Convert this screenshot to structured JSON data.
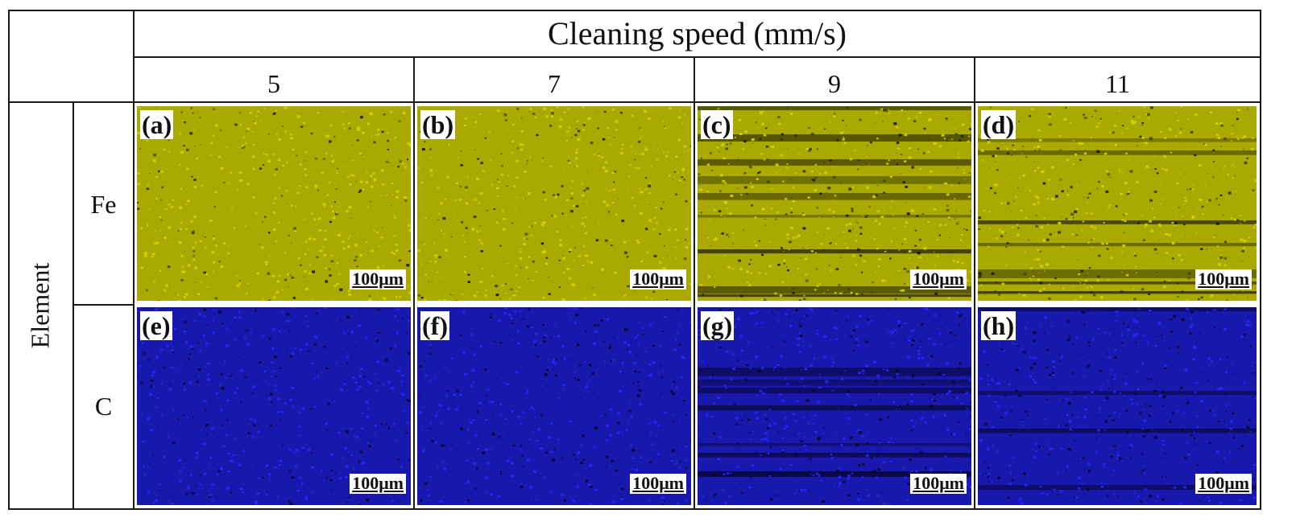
{
  "figure": {
    "header": "Cleaning speed (mm/s)",
    "row_group_label": "Element",
    "speeds": [
      "5",
      "7",
      "9",
      "11"
    ],
    "rows": [
      {
        "element": "Fe",
        "color": "#d6d400",
        "labels": [
          "(a)",
          "(b)",
          "(c)",
          "(d)"
        ]
      },
      {
        "element": "C",
        "color": "#2828ff",
        "labels": [
          "(e)",
          "(f)",
          "(g)",
          "(h)"
        ]
      }
    ],
    "scale_bar": "100μm"
  }
}
